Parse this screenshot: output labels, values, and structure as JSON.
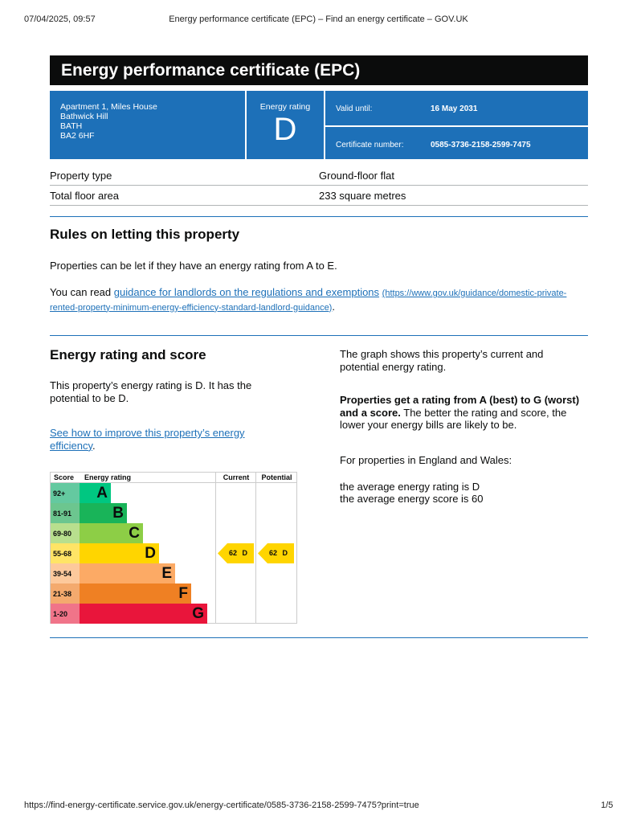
{
  "browser": {
    "datetime": "07/04/2025, 09:57",
    "page_title": "Energy performance certificate (EPC) – Find an energy certificate – GOV.UK",
    "url": "https://find-energy-certificate.service.gov.uk/energy-certificate/0585-3736-2158-2599-7475?print=true",
    "page": "1/5"
  },
  "title": "Energy performance certificate (EPC)",
  "address": [
    "Apartment 1, Miles House",
    "Bathwick Hill",
    "BATH",
    "BA2 6HF"
  ],
  "rating": {
    "label": "Energy rating",
    "value": "D"
  },
  "valid": {
    "label": "Valid until:",
    "value": "16 May 2031"
  },
  "cert": {
    "label": "Certificate number:",
    "value": "0585-3736-2158-2599-7475"
  },
  "property": [
    {
      "k": "Property type",
      "v": "Ground-floor flat"
    },
    {
      "k": "Total floor area",
      "v": "233 square metres"
    }
  ],
  "rules": {
    "heading": "Rules on letting this property",
    "p1": "Properties can be let if they have an energy rating from A to E.",
    "p2_pre": "You can read ",
    "link": "guidance for landlords on the regulations and exemptions",
    "link_url": "(https://www.gov.uk/guidance/domestic-private-rented-property-minimum-energy-efficiency-standard-landlord-guidance)",
    "p2_post": "."
  },
  "energy": {
    "heading": "Energy rating and score",
    "p1": "This property’s energy rating is D. It has the potential to be D.",
    "link": "See how to improve this property’s energy efficiency",
    "link_post": ".",
    "r1": "The graph shows this property’s current and potential energy rating.",
    "r2_bold": "Properties get a rating from A (best) to G (worst) and a score.",
    "r2": " The better the rating and score, the lower your energy bills are likely to be.",
    "r3": "For properties in England and Wales:",
    "r4": "the average energy rating is D",
    "r5": "the average energy score is 60"
  },
  "chart_data": {
    "type": "table",
    "headers": [
      "Score",
      "Energy rating",
      "Current",
      "Potential"
    ],
    "bands": [
      {
        "score": "92+",
        "letter": "A",
        "color": "#00c781",
        "light": "#64c9a0"
      },
      {
        "score": "81-91",
        "letter": "B",
        "color": "#19b459",
        "light": "#6cc68f"
      },
      {
        "score": "69-80",
        "letter": "C",
        "color": "#8dce46",
        "light": "#b8df8e"
      },
      {
        "score": "55-68",
        "letter": "D",
        "color": "#ffd500",
        "light": "#ffe466"
      },
      {
        "score": "39-54",
        "letter": "E",
        "color": "#fcaa65",
        "light": "#fdc99c"
      },
      {
        "score": "21-38",
        "letter": "F",
        "color": "#ef8023",
        "light": "#f4aa6e"
      },
      {
        "score": "1-20",
        "letter": "G",
        "color": "#e9153b",
        "light": "#f07489"
      }
    ],
    "current": {
      "score": 62,
      "letter": "D",
      "label": "62 D"
    },
    "potential": {
      "score": 62,
      "letter": "D",
      "label": "62 D"
    }
  }
}
